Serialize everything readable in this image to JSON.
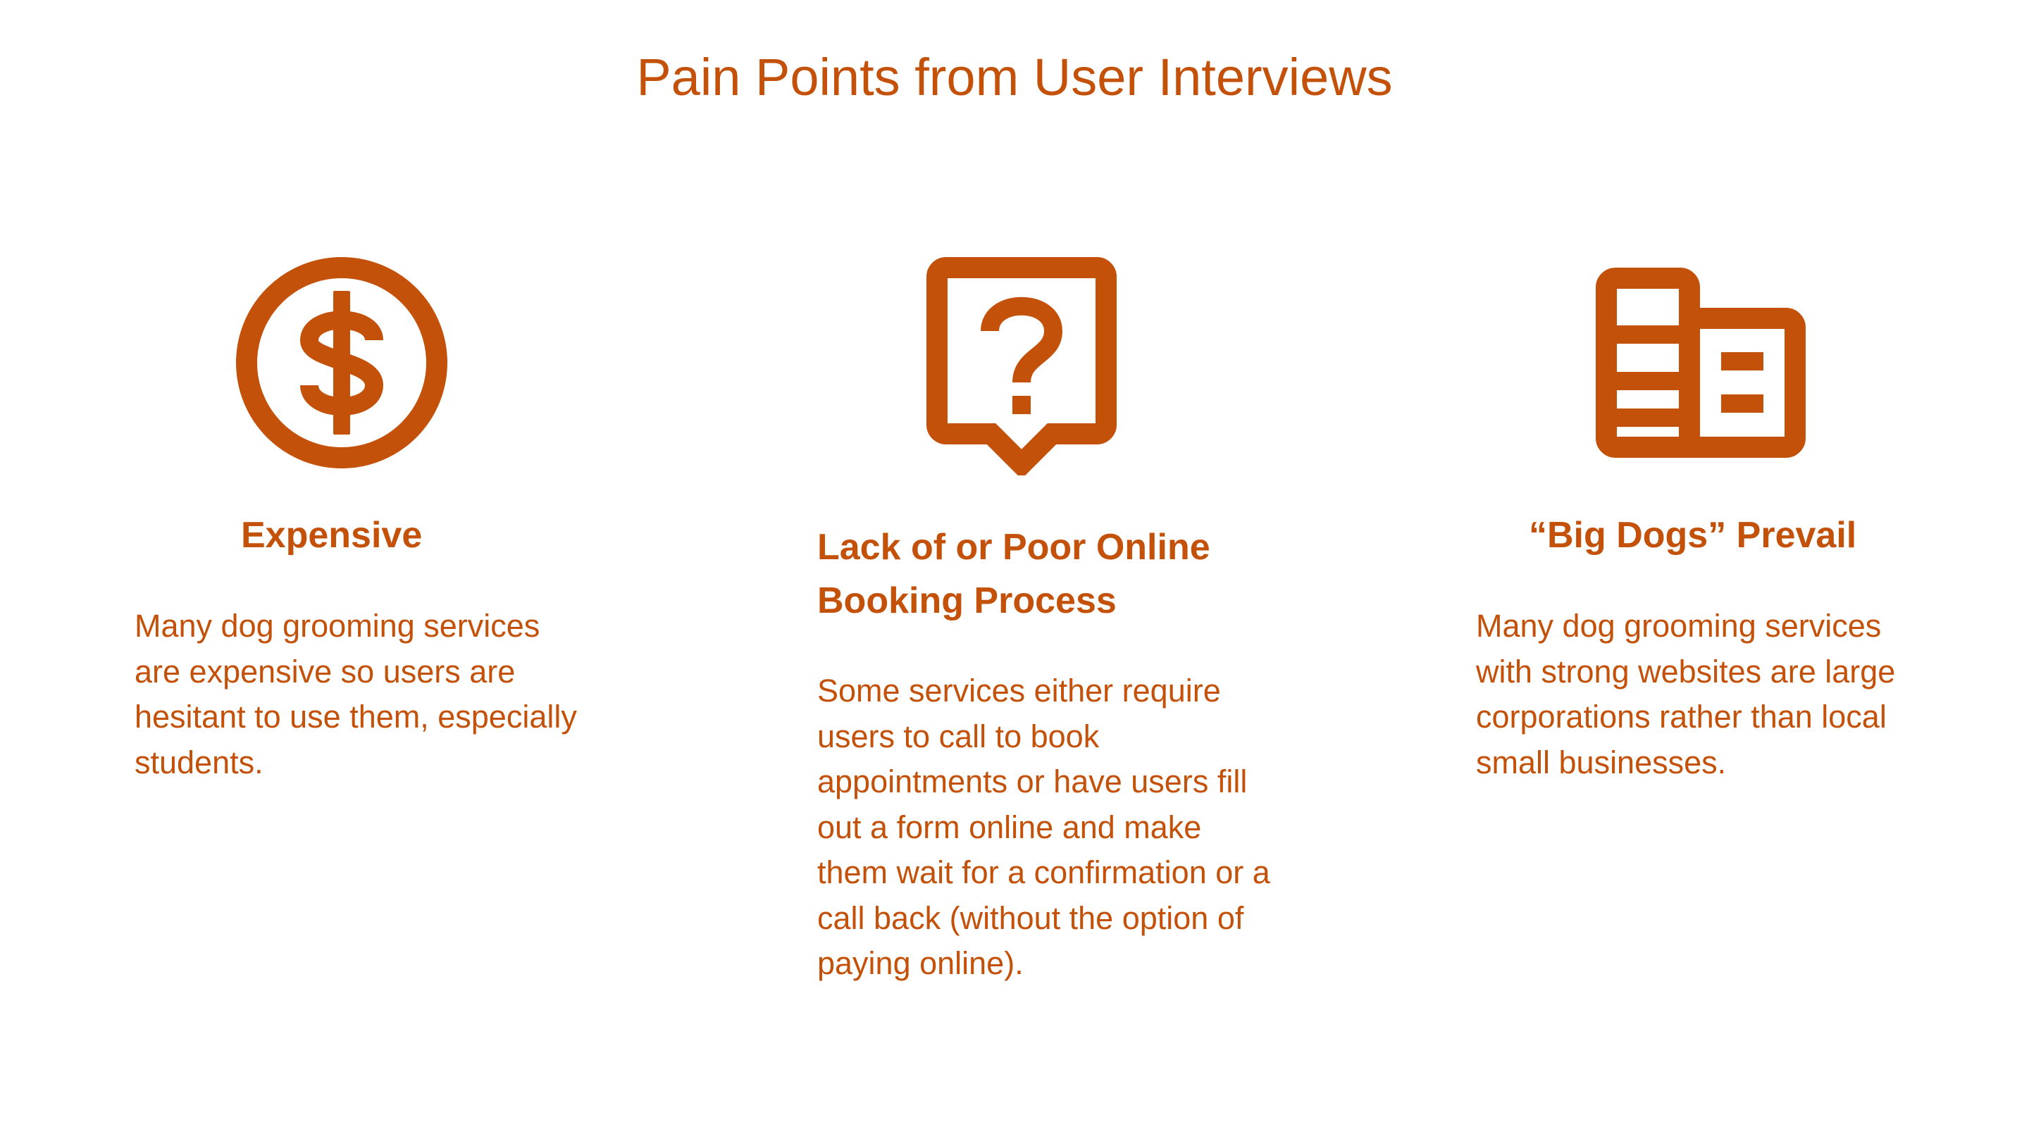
{
  "slide": {
    "title": "Pain Points from User Interviews",
    "accent_color": "#c4510a"
  },
  "pain_points": [
    {
      "icon": "dollar-circle-icon",
      "heading": "Expensive",
      "description": "Many dog grooming services are expensive so users are hesitant to use them, especially students."
    },
    {
      "icon": "question-speech-bubble-icon",
      "heading": "Lack of or Poor Online Booking Process",
      "description": "Some services either require users to call to book appointments or have users fill out a form online and make them wait for a confirmation or a call back (without the option of paying online)."
    },
    {
      "icon": "buildings-icon",
      "heading": "“Big Dogs” Prevail",
      "description": "Many dog grooming services with strong websites are large corporations rather than local small businesses."
    }
  ]
}
